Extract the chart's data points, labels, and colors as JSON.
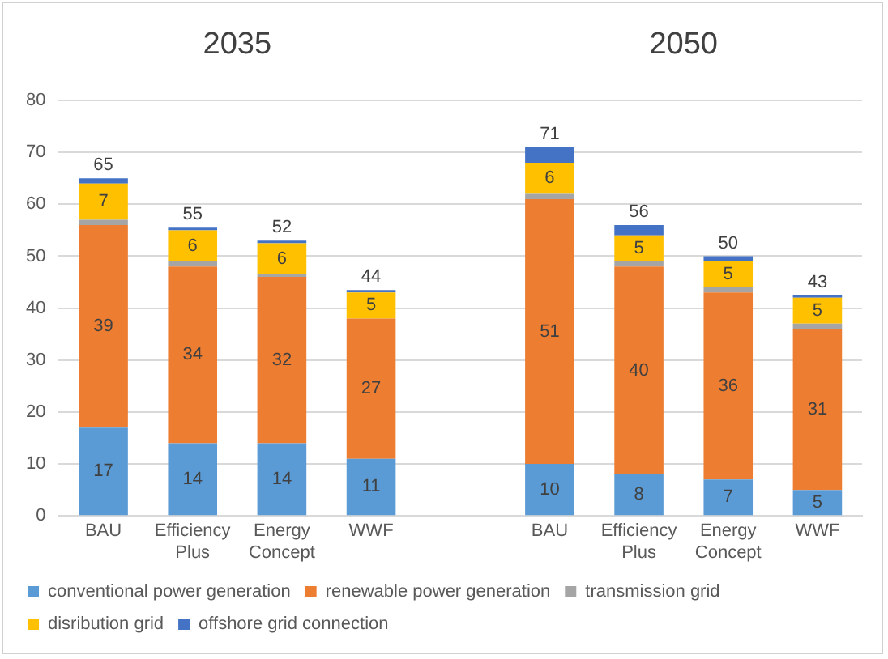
{
  "chart_data": {
    "type": "bar",
    "stacked": true,
    "categories": [
      "BAU",
      "Efficiency Plus",
      "Energy Concept",
      "WWF",
      null,
      "BAU",
      "Efficiency Plus",
      "Energy Concept",
      "WWF"
    ],
    "series": [
      {
        "name": "conventional power generation",
        "color": "#5b9bd5",
        "values": [
          17,
          14,
          14,
          11,
          null,
          10,
          8,
          7,
          5
        ],
        "value_labels": [
          "17",
          "14",
          "14",
          "11",
          null,
          "10",
          "8",
          "7",
          "5"
        ]
      },
      {
        "name": "renewable power generation",
        "color": "#ed7d31",
        "values": [
          39,
          34,
          32,
          27,
          null,
          51,
          40,
          36,
          31
        ],
        "value_labels": [
          "39",
          "34",
          "32",
          "27",
          null,
          "51",
          "40",
          "36",
          "31"
        ]
      },
      {
        "name": "transmission grid",
        "color": "#a5a5a5",
        "values": [
          1,
          1,
          0.5,
          null,
          null,
          1,
          1,
          1,
          1
        ]
      },
      {
        "name": "disribution grid",
        "color": "#ffc000",
        "values": [
          7,
          6,
          6,
          5,
          null,
          6,
          5,
          5,
          5
        ],
        "value_labels": [
          "7",
          "6",
          "6",
          "5",
          null,
          "6",
          "5",
          "5",
          "5"
        ]
      },
      {
        "name": "offshore grid connection",
        "color": "#4472c4",
        "values": [
          1,
          0.5,
          0.5,
          0.5,
          null,
          3,
          2,
          1,
          0.5
        ]
      }
    ],
    "totals": [
      "65",
      "55",
      "52",
      "44",
      null,
      "71",
      "56",
      "50",
      "43"
    ],
    "annotations": [
      "2035",
      "2050"
    ],
    "ylim": [
      0,
      80
    ],
    "yticks": [
      0,
      10,
      20,
      30,
      40,
      50,
      60,
      70,
      80
    ],
    "grid": "y",
    "legend": "bottom"
  }
}
